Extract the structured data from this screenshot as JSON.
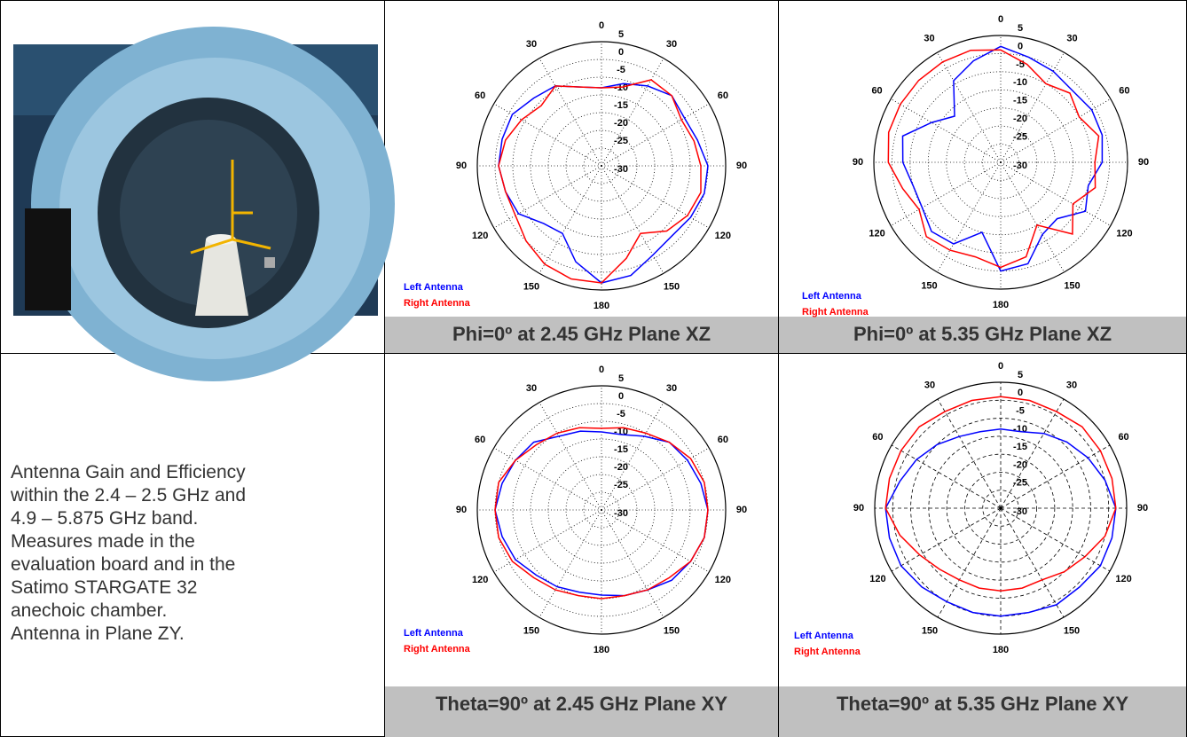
{
  "chart_data": [
    {
      "type": "polar",
      "title": "Phi=0º at 2.45 GHz Plane XZ",
      "grid": "dotted",
      "legend": "lower left",
      "rlim": [
        -30,
        5
      ],
      "rticks": [
        5,
        0,
        -5,
        -10,
        -15,
        -20,
        -25,
        -30
      ],
      "thetaticks": [
        0,
        30,
        60,
        90,
        120,
        150,
        180,
        {
          "value": 210,
          "label": "150"
        },
        {
          "value": 240,
          "label": "120"
        },
        {
          "value": 270,
          "label": "90"
        },
        {
          "value": 300,
          "label": "60"
        },
        {
          "value": 330,
          "label": "30"
        }
      ],
      "theta": [
        0,
        15,
        30,
        45,
        60,
        75,
        90,
        105,
        120,
        135,
        150,
        165,
        180,
        195,
        210,
        225,
        240,
        255,
        270,
        285,
        300,
        315,
        330,
        345
      ],
      "series": [
        {
          "name": "Left Antenna",
          "color": "#0000ff",
          "values": [
            -8,
            -6,
            -4,
            -2,
            -3,
            -2,
            0,
            0,
            -1,
            -2,
            -1,
            2,
            3,
            -2,
            -8,
            -7,
            -3,
            -2,
            -1,
            -1,
            -1,
            -3,
            -4,
            -7
          ]
        },
        {
          "name": "Right Antenna",
          "color": "#ff0000",
          "values": [
            -8,
            -7,
            -2,
            -2,
            -4,
            -3,
            -2,
            -1,
            -2,
            -4,
            -8,
            -3,
            3,
            3,
            2,
            0,
            -2,
            -2,
            -1,
            -2,
            -4,
            -6,
            -4,
            -7
          ]
        }
      ]
    },
    {
      "type": "polar",
      "title": "Phi=0º at 5.35 GHz Plane XZ",
      "grid": "dotted",
      "legend": "lower left",
      "rlim": [
        -30,
        5
      ],
      "rticks": [
        5,
        0,
        -5,
        -10,
        -15,
        -20,
        -25,
        -30
      ],
      "thetaticks": [
        0,
        30,
        60,
        90,
        120,
        150,
        180,
        {
          "value": 210,
          "label": "150"
        },
        {
          "value": 240,
          "label": "120"
        },
        {
          "value": 270,
          "label": "90"
        },
        {
          "value": 300,
          "label": "60"
        },
        {
          "value": 330,
          "label": "30"
        }
      ],
      "theta": [
        0,
        15,
        30,
        45,
        60,
        75,
        90,
        105,
        120,
        135,
        150,
        165,
        180,
        195,
        210,
        225,
        240,
        255,
        270,
        285,
        300,
        315,
        330,
        345
      ],
      "series": [
        {
          "name": "Left Antenna",
          "color": "#0000ff",
          "values": [
            2,
            0,
            -1,
            -2,
            -1,
            -1,
            -2,
            -5,
            -3,
            -8,
            -7,
            -1,
            0,
            -10,
            -4,
            -3,
            -5,
            -5,
            -3,
            -2,
            -8,
            -12,
            -4,
            -1
          ]
        },
        {
          "name": "Right Antenna",
          "color": "#ff0000",
          "values": [
            1,
            -2,
            -5,
            -3,
            -5,
            -2,
            -4,
            -3,
            -7,
            -2,
            -10,
            -3,
            -1,
            -3,
            -2,
            -1,
            -4,
            -2,
            1,
            2,
            2,
            2,
            2,
            2
          ]
        }
      ]
    },
    {
      "type": "polar",
      "title": "Theta=90º at 2.45 GHz Plane XY",
      "grid": "dotted",
      "legend": "lower left",
      "rlim": [
        -30,
        5
      ],
      "rticks": [
        5,
        0,
        -5,
        -10,
        -15,
        -20,
        -25,
        -30
      ],
      "thetaticks": [
        0,
        30,
        60,
        90,
        120,
        150,
        180,
        {
          "value": 210,
          "label": "150"
        },
        {
          "value": 240,
          "label": "120"
        },
        {
          "value": 270,
          "label": "90"
        },
        {
          "value": 300,
          "label": "60"
        },
        {
          "value": 330,
          "label": "30"
        }
      ],
      "theta": [
        0,
        15,
        30,
        45,
        60,
        75,
        90,
        105,
        120,
        135,
        150,
        165,
        180,
        195,
        210,
        225,
        240,
        255,
        270,
        285,
        300,
        315,
        330,
        345
      ],
      "series": [
        {
          "name": "Left Antenna",
          "color": "#0000ff",
          "values": [
            -8,
            -8,
            -6,
            -3,
            -2,
            -1,
            0,
            0,
            -1,
            -2,
            -4,
            -5,
            -6,
            -6,
            -5,
            -4,
            -2,
            -1,
            0,
            -1,
            -2,
            -3,
            -6,
            -7
          ]
        },
        {
          "name": "Right Antenna",
          "color": "#ff0000",
          "values": [
            -7,
            -6,
            -5,
            -3,
            -1,
            0,
            0,
            0,
            -1,
            -3,
            -4,
            -5,
            -5,
            -5,
            -4,
            -3,
            -1,
            0,
            0,
            0,
            -2,
            -4,
            -5,
            -6
          ]
        }
      ]
    },
    {
      "type": "polar",
      "title": "Theta=90º at 5.35 GHz Plane XY",
      "grid": "dashed",
      "legend": "lower left",
      "rlim": [
        -30,
        5
      ],
      "rticks": [
        5,
        0,
        -5,
        -10,
        -15,
        -20,
        -25,
        -30
      ],
      "thetaticks": [
        0,
        30,
        60,
        90,
        120,
        150,
        180,
        {
          "value": 210,
          "label": "150"
        },
        {
          "value": 240,
          "label": "120"
        },
        {
          "value": 270,
          "label": "90"
        },
        {
          "value": 300,
          "label": "60"
        },
        {
          "value": 330,
          "label": "30"
        }
      ],
      "theta": [
        0,
        15,
        30,
        45,
        60,
        75,
        90,
        105,
        120,
        135,
        150,
        165,
        180,
        195,
        210,
        225,
        240,
        255,
        270,
        285,
        300,
        315,
        330,
        345
      ],
      "series": [
        {
          "name": "Left Antenna",
          "color": "#0000ff",
          "values": [
            -8,
            -8,
            -6,
            -4,
            -2,
            0,
            2,
            2,
            2,
            1,
            1,
            0,
            0,
            0,
            0,
            1,
            2,
            2,
            2,
            -1,
            -3,
            -5,
            -7,
            -8
          ]
        },
        {
          "name": "Right Antenna",
          "color": "#ff0000",
          "values": [
            1,
            1,
            1,
            2,
            2,
            2,
            2,
            0,
            -3,
            -5,
            -7,
            -7,
            -7,
            -7,
            -7,
            -6,
            -4,
            -1,
            2,
            2,
            2,
            2,
            1,
            1
          ]
        }
      ]
    }
  ],
  "description": {
    "lines": [
      "Antenna Gain and Efficiency",
      "within the 2.4 – 2.5 GHz and",
      "4.9 – 5.875 GHz band.",
      "Measures made in the",
      "evaluation board and in the",
      "Satimo STARGATE 32",
      "anechoic chamber.",
      "Antenna in Plane ZY."
    ]
  }
}
